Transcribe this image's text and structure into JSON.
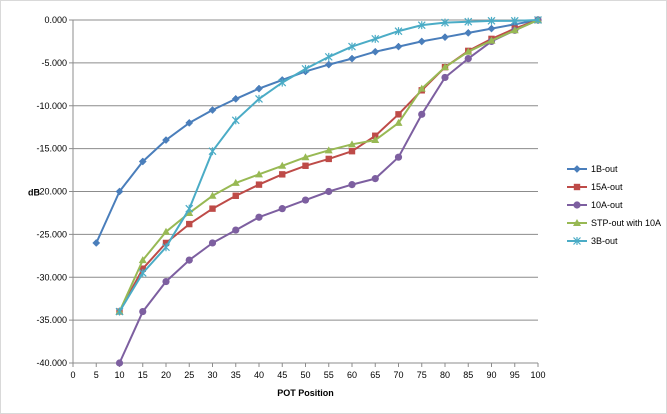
{
  "chart_data": {
    "type": "line",
    "xlabel": "POT Position",
    "ylabel": "dB",
    "xlim": [
      0,
      100
    ],
    "ylim": [
      -40,
      0
    ],
    "x_ticks": [
      "0",
      "5",
      "10",
      "15",
      "20",
      "25",
      "30",
      "35",
      "40",
      "45",
      "50",
      "55",
      "60",
      "65",
      "70",
      "75",
      "80",
      "85",
      "90",
      "95",
      "100"
    ],
    "y_ticks": [
      "0.000",
      "-5.000",
      "-10.000",
      "-15.000",
      "-20.000",
      "-25.000",
      "-30.000",
      "-35.000",
      "-40.000"
    ],
    "grid": "horizontal",
    "legend_position": "right",
    "series": [
      {
        "name": "1B-out",
        "color": "#4a7ebb",
        "marker": "diamond",
        "x": [
          5,
          10,
          15,
          20,
          25,
          30,
          35,
          40,
          45,
          50,
          55,
          60,
          65,
          70,
          75,
          80,
          85,
          90,
          95,
          100
        ],
        "y": [
          -26.0,
          -20.0,
          -16.5,
          -14.0,
          -12.0,
          -10.5,
          -9.2,
          -8.0,
          -7.0,
          -6.0,
          -5.2,
          -4.5,
          -3.7,
          -3.1,
          -2.5,
          -2.0,
          -1.5,
          -1.0,
          -0.5,
          0.0
        ]
      },
      {
        "name": "15A-out",
        "color": "#be4b48",
        "marker": "square",
        "x": [
          10,
          15,
          20,
          25,
          30,
          35,
          40,
          45,
          50,
          55,
          60,
          65,
          70,
          75,
          80,
          85,
          90,
          95,
          100
        ],
        "y": [
          -34.0,
          -29.0,
          -26.0,
          -23.8,
          -22.0,
          -20.5,
          -19.2,
          -18.0,
          -17.0,
          -16.2,
          -15.3,
          -13.5,
          -11.0,
          -8.2,
          -5.5,
          -3.6,
          -2.2,
          -1.0,
          0.0
        ]
      },
      {
        "name": "10A-out",
        "color": "#7d5fa0",
        "marker": "circle",
        "x": [
          10,
          15,
          20,
          25,
          30,
          35,
          40,
          45,
          50,
          55,
          60,
          65,
          70,
          75,
          80,
          85,
          90,
          95,
          100
        ],
        "y": [
          -40.0,
          -34.0,
          -30.5,
          -28.0,
          -26.0,
          -24.5,
          -23.0,
          -22.0,
          -21.0,
          -20.0,
          -19.2,
          -18.5,
          -16.0,
          -11.0,
          -6.7,
          -4.5,
          -2.5,
          -1.2,
          0.0
        ]
      },
      {
        "name": "STP-out with 10A",
        "color": "#98b954",
        "marker": "triangle",
        "x": [
          10,
          15,
          20,
          25,
          30,
          35,
          40,
          45,
          50,
          55,
          60,
          65,
          70,
          75,
          80,
          85,
          90,
          95,
          100
        ],
        "y": [
          -34.0,
          -28.0,
          -24.7,
          -22.5,
          -20.5,
          -19.0,
          -18.0,
          -17.0,
          -16.0,
          -15.2,
          -14.5,
          -14.0,
          -12.0,
          -8.0,
          -5.5,
          -3.7,
          -2.4,
          -1.2,
          0.0
        ]
      },
      {
        "name": "3B-out",
        "color": "#4bacc6",
        "marker": "star",
        "x": [
          10,
          15,
          20,
          25,
          30,
          35,
          40,
          45,
          50,
          55,
          60,
          65,
          70,
          75,
          80,
          85,
          90,
          95,
          100
        ],
        "y": [
          -34.0,
          -29.5,
          -26.5,
          -22.0,
          -15.3,
          -11.7,
          -9.2,
          -7.3,
          -5.7,
          -4.3,
          -3.1,
          -2.2,
          -1.3,
          -0.6,
          -0.3,
          -0.2,
          -0.1,
          -0.1,
          0.0
        ]
      }
    ]
  }
}
